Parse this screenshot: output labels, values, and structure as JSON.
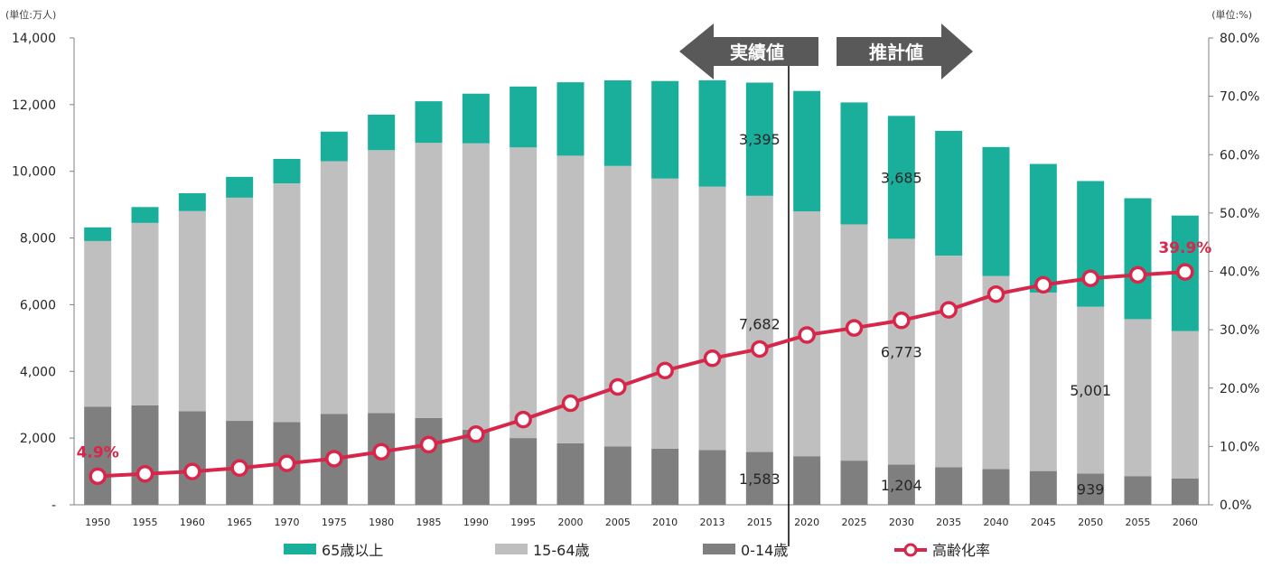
{
  "chart_data": {
    "type": "bar",
    "stacked": true,
    "left_unit": "(単位:万人)",
    "right_unit": "(単位:%)",
    "categories": [
      "1950",
      "1955",
      "1960",
      "1965",
      "1970",
      "1975",
      "1980",
      "1985",
      "1990",
      "1995",
      "2000",
      "2005",
      "2010",
      "2013",
      "2015",
      "2020",
      "2025",
      "2030",
      "2035",
      "2040",
      "2045",
      "2050",
      "2055",
      "2060"
    ],
    "series": [
      {
        "name": "0-14歳",
        "color": "#7f7f7f",
        "values": [
          2943,
          2980,
          2807,
          2517,
          2482,
          2722,
          2751,
          2603,
          2249,
          2001,
          1847,
          1752,
          1680,
          1639,
          1583,
          1457,
          1324,
          1204,
          1129,
          1073,
          1012,
          939,
          861,
          791
        ]
      },
      {
        "name": "15-64歳",
        "color": "#bfbfbf",
        "values": [
          4966,
          5473,
          6000,
          6693,
          7157,
          7581,
          7883,
          8251,
          8590,
          8716,
          8622,
          8409,
          8103,
          7901,
          7682,
          7341,
          7085,
          6773,
          6343,
          5787,
          5353,
          5001,
          4706,
          4418
        ]
      },
      {
        "name": "65歳以上",
        "color": "#1aaf9b",
        "values": [
          411,
          475,
          535,
          624,
          733,
          887,
          1065,
          1247,
          1489,
          1826,
          2201,
          2567,
          2925,
          3190,
          3395,
          3612,
          3657,
          3685,
          3741,
          3868,
          3856,
          3768,
          3626,
          3464
        ]
      }
    ],
    "line_series": {
      "name": "高齢化率",
      "color": "#d8264a",
      "values": [
        4.9,
        5.3,
        5.7,
        6.3,
        7.1,
        7.9,
        9.1,
        10.3,
        12.1,
        14.6,
        17.4,
        20.2,
        23.0,
        25.1,
        26.7,
        29.1,
        30.3,
        31.6,
        33.4,
        36.1,
        37.7,
        38.8,
        39.4,
        39.9
      ]
    },
    "left_axis": {
      "ticks": [
        "-",
        "2,000",
        "4,000",
        "6,000",
        "8,000",
        "10,000",
        "12,000",
        "14,000"
      ],
      "min": 0,
      "max": 14000
    },
    "right_axis": {
      "ticks": [
        "0.0%",
        "10.0%",
        "20.0%",
        "30.0%",
        "40.0%",
        "50.0%",
        "60.0%",
        "70.0%",
        "80.0%"
      ],
      "min": 0,
      "max": 80
    },
    "divider_after": "2015",
    "arrows": {
      "left_label": "実績値",
      "right_label": "推計値",
      "color": "#595959"
    },
    "bar_labels": [
      {
        "category": "2015",
        "series": "65歳以上",
        "text": "3,395"
      },
      {
        "category": "2015",
        "series": "15-64歳",
        "text": "7,682"
      },
      {
        "category": "2015",
        "series": "0-14歳",
        "text": "1,583"
      },
      {
        "category": "2030",
        "series": "65歳以上",
        "text": "3,685"
      },
      {
        "category": "2030",
        "series": "15-64歳",
        "text": "6,773"
      },
      {
        "category": "2030",
        "series": "0-14歳",
        "text": "1,204"
      },
      {
        "category": "2050",
        "series": "15-64歳",
        "text": "5,001"
      },
      {
        "category": "2050",
        "series": "0-14歳",
        "text": "939"
      }
    ],
    "line_labels": [
      {
        "category": "1950",
        "text": "4.9%"
      },
      {
        "category": "2060",
        "text": "39.9%"
      }
    ],
    "legend": {
      "position": "bottom",
      "items": [
        {
          "label": "65歳以上",
          "kind": "box",
          "color": "#1aaf9b"
        },
        {
          "label": "15-64歳",
          "kind": "box",
          "color": "#bfbfbf"
        },
        {
          "label": "0-14歳",
          "kind": "box",
          "color": "#7f7f7f"
        },
        {
          "label": "高齢化率",
          "kind": "line",
          "color": "#d8264a"
        }
      ]
    }
  }
}
